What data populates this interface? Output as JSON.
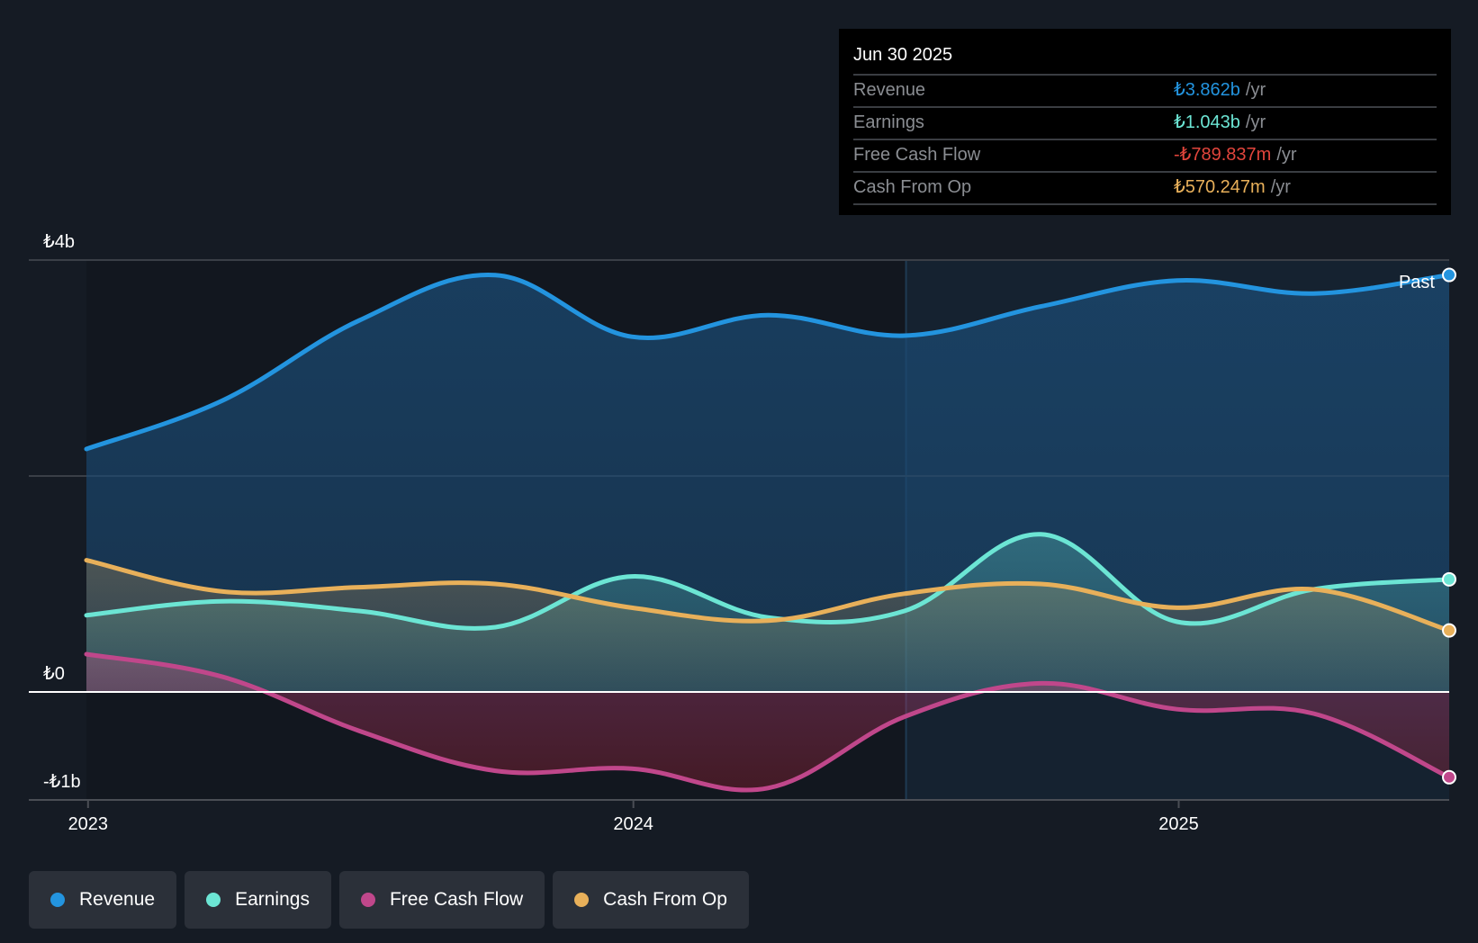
{
  "tooltip": {
    "date": "Jun 30 2025",
    "rows": [
      {
        "label": "Revenue",
        "value": "₺3.862b",
        "unit": "/yr",
        "color": "#2394df"
      },
      {
        "label": "Earnings",
        "value": "₺1.043b",
        "unit": "/yr",
        "color": "#6ce5d4"
      },
      {
        "label": "Free Cash Flow",
        "value": "-₺789.837m",
        "unit": "/yr",
        "color": "#e2453c"
      },
      {
        "label": "Cash From Op",
        "value": "₺570.247m",
        "unit": "/yr",
        "color": "#e8b05a"
      }
    ]
  },
  "past_label": "Past",
  "legend": [
    {
      "label": "Revenue",
      "color": "#2394df"
    },
    {
      "label": "Earnings",
      "color": "#6ce5d4"
    },
    {
      "label": "Free Cash Flow",
      "color": "#c0478b"
    },
    {
      "label": "Cash From Op",
      "color": "#e8b05a"
    }
  ],
  "chart_data": {
    "type": "area",
    "title": "",
    "xlabel": "",
    "ylabel": "",
    "currency": "₺",
    "ylim": [
      -1,
      4
    ],
    "yticks": [
      {
        "value": 4,
        "label": "₺4b"
      },
      {
        "value": 2,
        "label": ""
      },
      {
        "value": 0,
        "label": "₺0"
      },
      {
        "value": -1,
        "label": "-₺1b"
      }
    ],
    "xlim": [
      2022.997,
      2025.496
    ],
    "xticks": [
      {
        "value": 2023,
        "label": "2023"
      },
      {
        "value": 2024,
        "label": "2024"
      },
      {
        "value": 2025,
        "label": "2025"
      }
    ],
    "past_boundary": 2024.5,
    "grid": true,
    "legend_position": "bottom-left",
    "x": [
      2022.997,
      2023.247,
      2023.497,
      2023.747,
      2023.997,
      2024.247,
      2024.497,
      2024.747,
      2024.997,
      2025.247,
      2025.496
    ],
    "series": [
      {
        "name": "Revenue",
        "color": "#2394df",
        "values": [
          2.25,
          2.7,
          3.44,
          3.86,
          3.29,
          3.49,
          3.3,
          3.57,
          3.81,
          3.69,
          3.862
        ]
      },
      {
        "name": "Earnings",
        "color": "#6ce5d4",
        "values": [
          0.71,
          0.84,
          0.75,
          0.6,
          1.07,
          0.69,
          0.75,
          1.46,
          0.65,
          0.95,
          1.043
        ]
      },
      {
        "name": "Free Cash Flow",
        "color": "#c0478b",
        "values": [
          0.35,
          0.14,
          -0.36,
          -0.73,
          -0.71,
          -0.89,
          -0.23,
          0.08,
          -0.16,
          -0.2,
          -0.79
        ]
      },
      {
        "name": "Cash From Op",
        "color": "#e8b05a",
        "values": [
          1.22,
          0.93,
          0.97,
          1.0,
          0.78,
          0.66,
          0.91,
          1.0,
          0.78,
          0.95,
          0.57
        ]
      }
    ]
  }
}
